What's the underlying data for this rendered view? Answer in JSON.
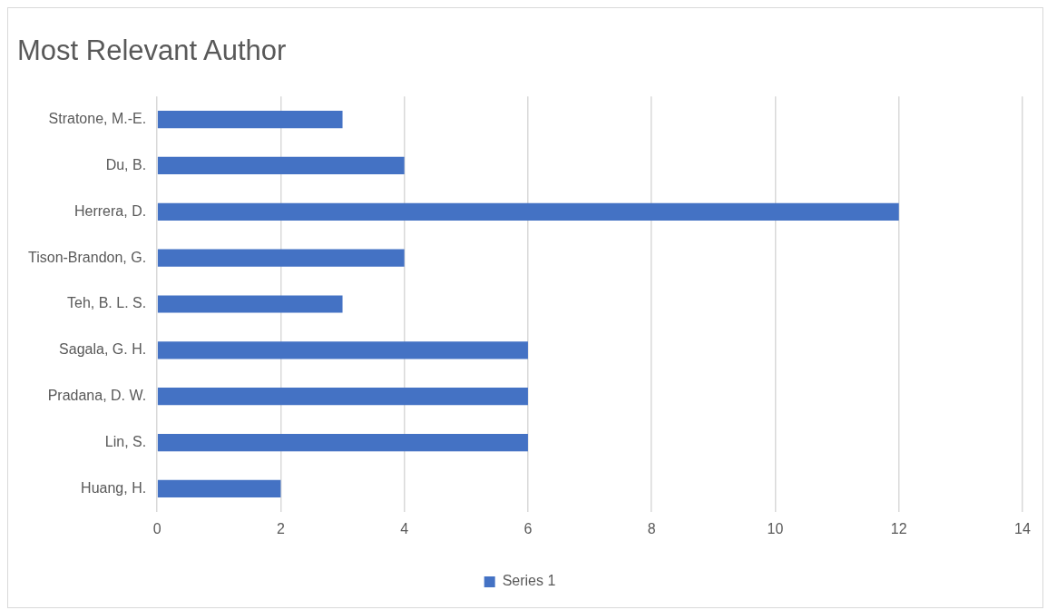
{
  "chart_data": {
    "type": "bar",
    "title": "Most Relevant Author",
    "orientation": "horizontal",
    "categories": [
      "Stratone, M.-E.",
      "Du, B.",
      "Herrera, D.",
      "Tison-Brandon, G.",
      "Teh, B. L. S.",
      "Sagala, G. H.",
      "Pradana, D. W.",
      "Lin, S.",
      "Huang, H."
    ],
    "series": [
      {
        "name": "Series 1",
        "color": "#4472c4",
        "values": [
          3,
          4,
          12,
          4,
          3,
          6,
          6,
          6,
          2
        ]
      }
    ],
    "xlim": [
      0,
      14
    ],
    "xticks": [
      0,
      2,
      4,
      6,
      8,
      10,
      12,
      14
    ],
    "grid": "x",
    "legend": "bottom"
  }
}
